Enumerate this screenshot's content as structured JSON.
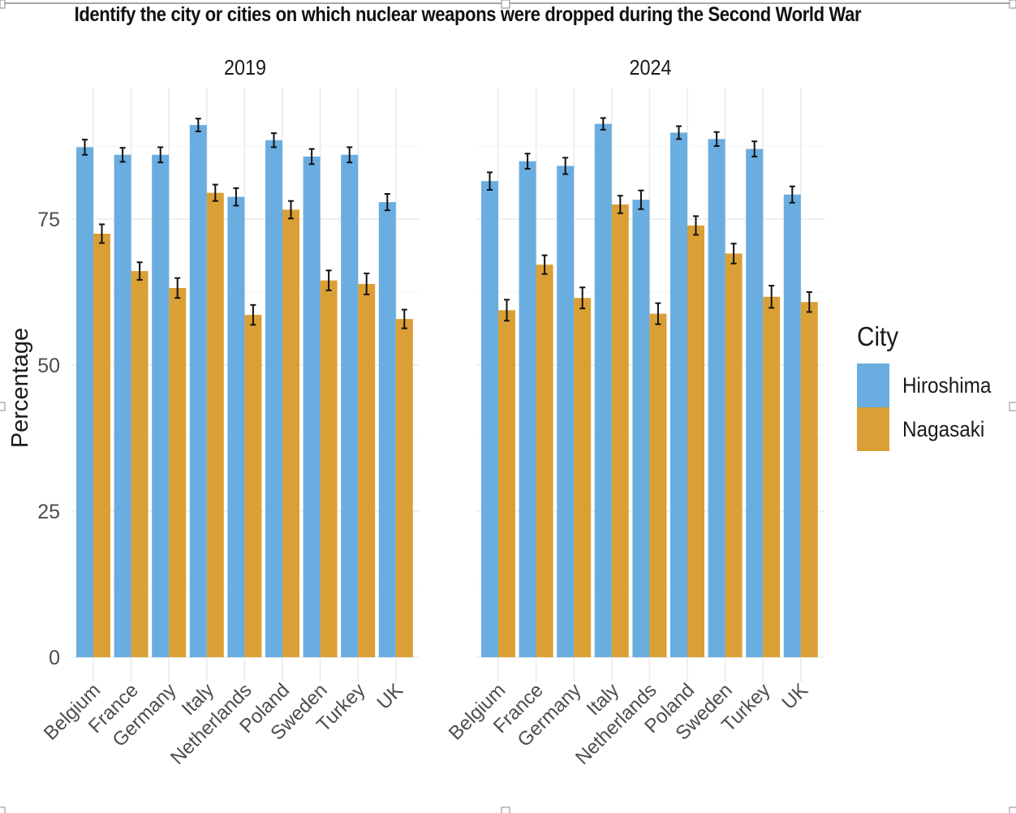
{
  "chart_data": {
    "type": "bar",
    "title": "Identify the city or cities on which nuclear weapons were dropped during the Second World War",
    "ylabel": "Percentage",
    "xlabel": "",
    "ylim": [
      0,
      100
    ],
    "yticks": [
      0,
      25,
      50,
      75
    ],
    "grid": true,
    "error_bars": true,
    "legend": {
      "title": "City",
      "placement": "right",
      "entries": [
        {
          "name": "Hiroshima",
          "color": "#6aade0"
        },
        {
          "name": "Nagasaki",
          "color": "#dba035"
        }
      ]
    },
    "categories": [
      "Belgium",
      "France",
      "Germany",
      "Italy",
      "Netherlands",
      "Poland",
      "Sweden",
      "Turkey",
      "UK"
    ],
    "panels": [
      {
        "label": "2019",
        "series": [
          {
            "name": "Hiroshima",
            "values": [
              87.3,
              86.0,
              86.0,
              91.1,
              78.8,
              88.5,
              85.7,
              86.0,
              77.9
            ],
            "errors": [
              1.3,
              1.2,
              1.3,
              1.1,
              1.5,
              1.2,
              1.3,
              1.3,
              1.4
            ]
          },
          {
            "name": "Nagasaki",
            "values": [
              72.5,
              66.1,
              63.2,
              79.5,
              58.6,
              76.6,
              64.5,
              63.9,
              57.9
            ],
            "errors": [
              1.6,
              1.5,
              1.7,
              1.4,
              1.7,
              1.5,
              1.7,
              1.8,
              1.6
            ]
          }
        ]
      },
      {
        "label": "2024",
        "series": [
          {
            "name": "Hiroshima",
            "values": [
              81.5,
              84.9,
              84.1,
              91.3,
              78.3,
              89.8,
              88.7,
              87.0,
              79.2
            ],
            "errors": [
              1.5,
              1.3,
              1.4,
              1.0,
              1.6,
              1.1,
              1.2,
              1.3,
              1.4
            ]
          },
          {
            "name": "Nagasaki",
            "values": [
              59.4,
              67.2,
              61.5,
              77.5,
              58.8,
              73.9,
              69.1,
              61.7,
              60.8
            ],
            "errors": [
              1.8,
              1.6,
              1.8,
              1.5,
              1.8,
              1.6,
              1.7,
              1.9,
              1.7
            ]
          }
        ]
      }
    ]
  }
}
